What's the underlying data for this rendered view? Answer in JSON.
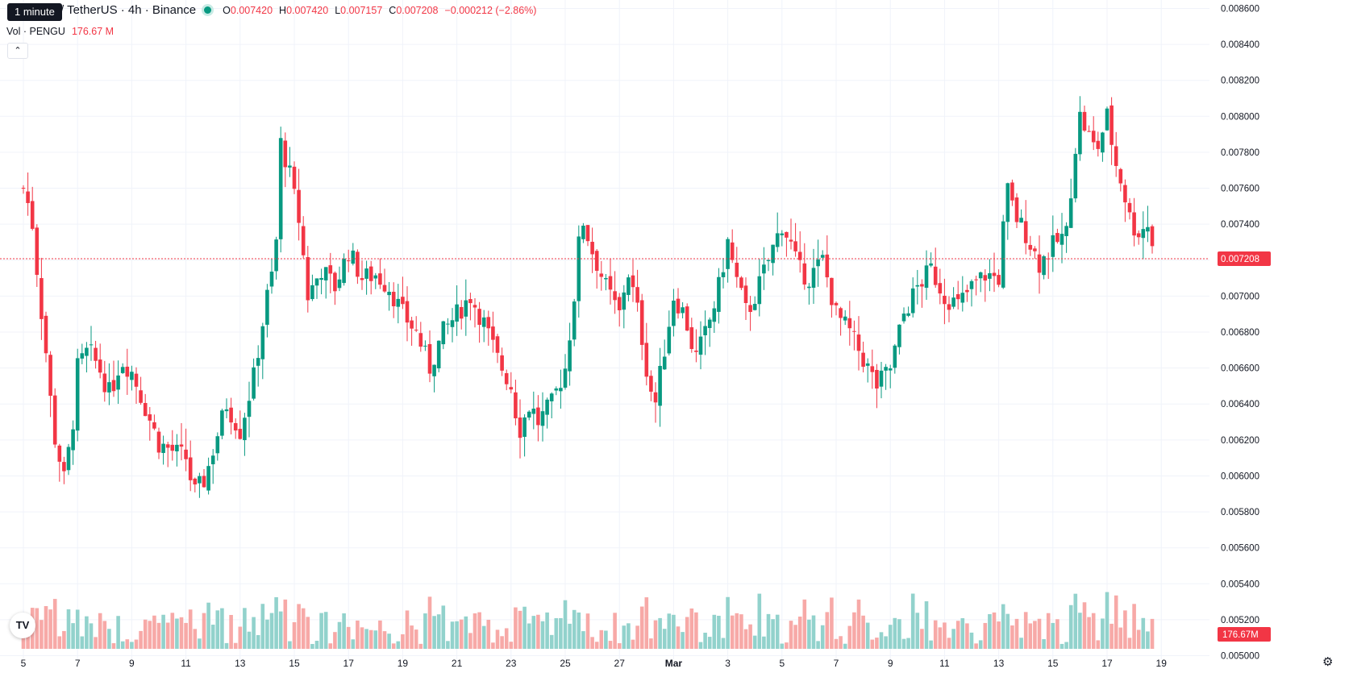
{
  "header": {
    "tooltip": "1 minute",
    "symbol_title": "U / TetherUS · 4h · Binance",
    "ohlc": {
      "o_label": "O",
      "o_value": "0.007420",
      "h_label": "H",
      "h_value": "0.007420",
      "l_label": "L",
      "l_value": "0.007157",
      "c_label": "C",
      "c_value": "0.007208",
      "change": "−0.000212 (−2.86%)"
    },
    "volume_label": "Vol · PENGU",
    "volume_value": "176.67 M",
    "collapse_icon": "chevron-up-icon",
    "logo_icon": "tradingview-logo",
    "logo_text": "TV",
    "settings_icon": "gear-icon"
  },
  "colors": {
    "up": "#089981",
    "down": "#f23645",
    "volume_up": "#92d2cc",
    "volume_down": "#f7a9a7",
    "grid": "#f0f3fa",
    "text": "#131722"
  },
  "chart_data": {
    "type": "candlestick",
    "timeframe": "4h",
    "exchange": "Binance",
    "ylim": [
      0.00498,
      0.00862
    ],
    "y_ticks": [
      "0.008600",
      "0.008400",
      "0.008200",
      "0.008000",
      "0.007800",
      "0.007600",
      "0.007400",
      "0.007200",
      "0.007000",
      "0.006800",
      "0.006600",
      "0.006400",
      "0.006200",
      "0.006000",
      "0.005800",
      "0.005600",
      "0.005400",
      "0.005200",
      "0.005000"
    ],
    "x_tick_labels": [
      "5",
      "7",
      "9",
      "11",
      "13",
      "15",
      "17",
      "19",
      "21",
      "23",
      "25",
      "27",
      "Mar",
      "3",
      "5",
      "7",
      "9",
      "11",
      "13",
      "15",
      "17",
      "19"
    ],
    "last_price": "0.007208",
    "last_volume": "176.67M",
    "anchors": [
      {
        "day": 5.0,
        "close": 0.0076
      },
      {
        "day": 5.3,
        "close": 0.00745
      },
      {
        "day": 5.6,
        "close": 0.007
      },
      {
        "day": 5.9,
        "close": 0.0066
      },
      {
        "day": 6.1,
        "close": 0.00625
      },
      {
        "day": 6.3,
        "close": 0.00612
      },
      {
        "day": 6.5,
        "close": 0.00598
      },
      {
        "day": 6.8,
        "close": 0.00625
      },
      {
        "day": 7.0,
        "close": 0.0066
      },
      {
        "day": 7.4,
        "close": 0.0067
      },
      {
        "day": 7.8,
        "close": 0.0066
      },
      {
        "day": 8.2,
        "close": 0.00645
      },
      {
        "day": 8.6,
        "close": 0.00665
      },
      {
        "day": 9.0,
        "close": 0.00658
      },
      {
        "day": 9.5,
        "close": 0.00638
      },
      {
        "day": 10.0,
        "close": 0.00618
      },
      {
        "day": 10.5,
        "close": 0.00614
      },
      {
        "day": 11.0,
        "close": 0.0061
      },
      {
        "day": 11.3,
        "close": 0.0059
      },
      {
        "day": 11.7,
        "close": 0.00598
      },
      {
        "day": 12.1,
        "close": 0.0062
      },
      {
        "day": 12.5,
        "close": 0.0064
      },
      {
        "day": 13.0,
        "close": 0.00625
      },
      {
        "day": 13.5,
        "close": 0.00655
      },
      {
        "day": 14.0,
        "close": 0.007
      },
      {
        "day": 14.3,
        "close": 0.0072
      },
      {
        "day": 14.5,
        "close": 0.00785
      },
      {
        "day": 14.8,
        "close": 0.0077
      },
      {
        "day": 15.2,
        "close": 0.0074
      },
      {
        "day": 15.5,
        "close": 0.007
      },
      {
        "day": 16.0,
        "close": 0.00715
      },
      {
        "day": 16.5,
        "close": 0.00705
      },
      {
        "day": 17.0,
        "close": 0.00725
      },
      {
        "day": 17.5,
        "close": 0.0071
      },
      {
        "day": 18.0,
        "close": 0.00712
      },
      {
        "day": 18.5,
        "close": 0.00705
      },
      {
        "day": 19.0,
        "close": 0.0069
      },
      {
        "day": 19.5,
        "close": 0.0068
      },
      {
        "day": 20.0,
        "close": 0.0066
      },
      {
        "day": 20.5,
        "close": 0.0068
      },
      {
        "day": 21.0,
        "close": 0.0069
      },
      {
        "day": 21.5,
        "close": 0.007
      },
      {
        "day": 22.0,
        "close": 0.00685
      },
      {
        "day": 22.5,
        "close": 0.00665
      },
      {
        "day": 23.0,
        "close": 0.0065
      },
      {
        "day": 23.3,
        "close": 0.00625
      },
      {
        "day": 23.7,
        "close": 0.0064
      },
      {
        "day": 24.0,
        "close": 0.0063
      },
      {
        "day": 24.5,
        "close": 0.0064
      },
      {
        "day": 25.0,
        "close": 0.0066
      },
      {
        "day": 25.3,
        "close": 0.00695
      },
      {
        "day": 25.6,
        "close": 0.00745
      },
      {
        "day": 26.0,
        "close": 0.00725
      },
      {
        "day": 26.5,
        "close": 0.00705
      },
      {
        "day": 27.0,
        "close": 0.0069
      },
      {
        "day": 27.3,
        "close": 0.00715
      },
      {
        "day": 27.7,
        "close": 0.0069
      },
      {
        "day": 28.0,
        "close": 0.0066
      },
      {
        "day": 28.3,
        "close": 0.00638
      },
      {
        "day": 28.6,
        "close": 0.00665
      },
      {
        "day": 29.0,
        "close": 0.007
      },
      {
        "day": 29.4,
        "close": 0.0069
      },
      {
        "day": 29.8,
        "close": 0.00665
      },
      {
        "day": 30.2,
        "close": 0.0068
      },
      {
        "day": 30.6,
        "close": 0.007
      },
      {
        "day": 31.0,
        "close": 0.0073
      },
      {
        "day": 31.3,
        "close": 0.0071
      },
      {
        "day": 31.7,
        "close": 0.0069
      },
      {
        "day": 32.0,
        "close": 0.007
      },
      {
        "day": 32.5,
        "close": 0.0072
      },
      {
        "day": 33.0,
        "close": 0.0074
      },
      {
        "day": 33.3,
        "close": 0.0073
      },
      {
        "day": 33.6,
        "close": 0.00715
      },
      {
        "day": 34.0,
        "close": 0.0071
      },
      {
        "day": 34.5,
        "close": 0.0072
      },
      {
        "day": 35.0,
        "close": 0.0069
      },
      {
        "day": 35.5,
        "close": 0.0068
      },
      {
        "day": 36.0,
        "close": 0.00665
      },
      {
        "day": 36.5,
        "close": 0.0065
      },
      {
        "day": 37.0,
        "close": 0.0066
      },
      {
        "day": 37.5,
        "close": 0.0069
      },
      {
        "day": 38.0,
        "close": 0.00705
      },
      {
        "day": 38.5,
        "close": 0.00715
      },
      {
        "day": 39.0,
        "close": 0.007
      },
      {
        "day": 39.5,
        "close": 0.00695
      },
      {
        "day": 40.0,
        "close": 0.00705
      },
      {
        "day": 40.5,
        "close": 0.00712
      },
      {
        "day": 41.0,
        "close": 0.0071
      },
      {
        "day": 41.3,
        "close": 0.0076
      },
      {
        "day": 41.6,
        "close": 0.00745
      },
      {
        "day": 42.0,
        "close": 0.00735
      },
      {
        "day": 42.5,
        "close": 0.00718
      },
      {
        "day": 43.0,
        "close": 0.00728
      },
      {
        "day": 43.5,
        "close": 0.00735
      },
      {
        "day": 43.8,
        "close": 0.0078
      },
      {
        "day": 44.0,
        "close": 0.008
      },
      {
        "day": 44.3,
        "close": 0.0079
      },
      {
        "day": 44.6,
        "close": 0.0078
      },
      {
        "day": 45.0,
        "close": 0.008
      },
      {
        "day": 45.3,
        "close": 0.00775
      },
      {
        "day": 45.6,
        "close": 0.0076
      },
      {
        "day": 45.8,
        "close": 0.00745
      },
      {
        "day": 46.1,
        "close": 0.00735
      },
      {
        "day": 46.5,
        "close": 0.0074
      },
      {
        "day": 46.8,
        "close": 0.00721
      }
    ]
  }
}
